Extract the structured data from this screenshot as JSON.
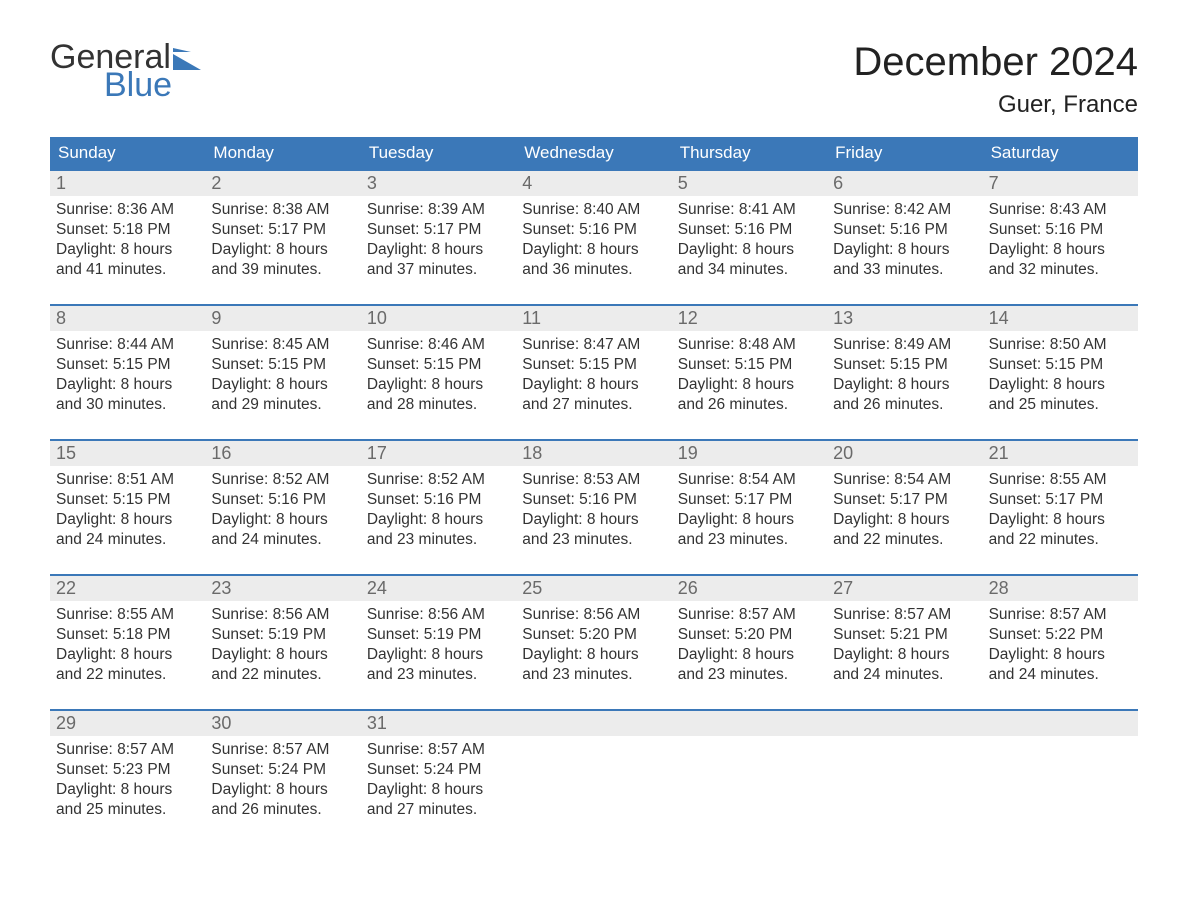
{
  "logo": {
    "part1": "General",
    "part2": "Blue",
    "flag_color": "#3b78b8",
    "text_color": "#333333"
  },
  "title": "December 2024",
  "location": "Guer, France",
  "colors": {
    "header_bg": "#3b78b8",
    "header_text": "#ffffff",
    "daynum_bg": "#ececec",
    "daynum_text": "#6a6a6a",
    "body_text": "#333333",
    "week_border": "#3b78b8",
    "background": "#ffffff"
  },
  "typography": {
    "title_fontsize": 40,
    "location_fontsize": 24,
    "weekday_fontsize": 17,
    "daynum_fontsize": 18,
    "content_fontsize": 15.5,
    "font_family": "Arial"
  },
  "weekdays": [
    "Sunday",
    "Monday",
    "Tuesday",
    "Wednesday",
    "Thursday",
    "Friday",
    "Saturday"
  ],
  "weeks": [
    [
      {
        "day": "1",
        "sunrise": "8:36 AM",
        "sunset": "5:18 PM",
        "daylight": "8 hours and 41 minutes."
      },
      {
        "day": "2",
        "sunrise": "8:38 AM",
        "sunset": "5:17 PM",
        "daylight": "8 hours and 39 minutes."
      },
      {
        "day": "3",
        "sunrise": "8:39 AM",
        "sunset": "5:17 PM",
        "daylight": "8 hours and 37 minutes."
      },
      {
        "day": "4",
        "sunrise": "8:40 AM",
        "sunset": "5:16 PM",
        "daylight": "8 hours and 36 minutes."
      },
      {
        "day": "5",
        "sunrise": "8:41 AM",
        "sunset": "5:16 PM",
        "daylight": "8 hours and 34 minutes."
      },
      {
        "day": "6",
        "sunrise": "8:42 AM",
        "sunset": "5:16 PM",
        "daylight": "8 hours and 33 minutes."
      },
      {
        "day": "7",
        "sunrise": "8:43 AM",
        "sunset": "5:16 PM",
        "daylight": "8 hours and 32 minutes."
      }
    ],
    [
      {
        "day": "8",
        "sunrise": "8:44 AM",
        "sunset": "5:15 PM",
        "daylight": "8 hours and 30 minutes."
      },
      {
        "day": "9",
        "sunrise": "8:45 AM",
        "sunset": "5:15 PM",
        "daylight": "8 hours and 29 minutes."
      },
      {
        "day": "10",
        "sunrise": "8:46 AM",
        "sunset": "5:15 PM",
        "daylight": "8 hours and 28 minutes."
      },
      {
        "day": "11",
        "sunrise": "8:47 AM",
        "sunset": "5:15 PM",
        "daylight": "8 hours and 27 minutes."
      },
      {
        "day": "12",
        "sunrise": "8:48 AM",
        "sunset": "5:15 PM",
        "daylight": "8 hours and 26 minutes."
      },
      {
        "day": "13",
        "sunrise": "8:49 AM",
        "sunset": "5:15 PM",
        "daylight": "8 hours and 26 minutes."
      },
      {
        "day": "14",
        "sunrise": "8:50 AM",
        "sunset": "5:15 PM",
        "daylight": "8 hours and 25 minutes."
      }
    ],
    [
      {
        "day": "15",
        "sunrise": "8:51 AM",
        "sunset": "5:15 PM",
        "daylight": "8 hours and 24 minutes."
      },
      {
        "day": "16",
        "sunrise": "8:52 AM",
        "sunset": "5:16 PM",
        "daylight": "8 hours and 24 minutes."
      },
      {
        "day": "17",
        "sunrise": "8:52 AM",
        "sunset": "5:16 PM",
        "daylight": "8 hours and 23 minutes."
      },
      {
        "day": "18",
        "sunrise": "8:53 AM",
        "sunset": "5:16 PM",
        "daylight": "8 hours and 23 minutes."
      },
      {
        "day": "19",
        "sunrise": "8:54 AM",
        "sunset": "5:17 PM",
        "daylight": "8 hours and 23 minutes."
      },
      {
        "day": "20",
        "sunrise": "8:54 AM",
        "sunset": "5:17 PM",
        "daylight": "8 hours and 22 minutes."
      },
      {
        "day": "21",
        "sunrise": "8:55 AM",
        "sunset": "5:17 PM",
        "daylight": "8 hours and 22 minutes."
      }
    ],
    [
      {
        "day": "22",
        "sunrise": "8:55 AM",
        "sunset": "5:18 PM",
        "daylight": "8 hours and 22 minutes."
      },
      {
        "day": "23",
        "sunrise": "8:56 AM",
        "sunset": "5:19 PM",
        "daylight": "8 hours and 22 minutes."
      },
      {
        "day": "24",
        "sunrise": "8:56 AM",
        "sunset": "5:19 PM",
        "daylight": "8 hours and 23 minutes."
      },
      {
        "day": "25",
        "sunrise": "8:56 AM",
        "sunset": "5:20 PM",
        "daylight": "8 hours and 23 minutes."
      },
      {
        "day": "26",
        "sunrise": "8:57 AM",
        "sunset": "5:20 PM",
        "daylight": "8 hours and 23 minutes."
      },
      {
        "day": "27",
        "sunrise": "8:57 AM",
        "sunset": "5:21 PM",
        "daylight": "8 hours and 24 minutes."
      },
      {
        "day": "28",
        "sunrise": "8:57 AM",
        "sunset": "5:22 PM",
        "daylight": "8 hours and 24 minutes."
      }
    ],
    [
      {
        "day": "29",
        "sunrise": "8:57 AM",
        "sunset": "5:23 PM",
        "daylight": "8 hours and 25 minutes."
      },
      {
        "day": "30",
        "sunrise": "8:57 AM",
        "sunset": "5:24 PM",
        "daylight": "8 hours and 26 minutes."
      },
      {
        "day": "31",
        "sunrise": "8:57 AM",
        "sunset": "5:24 PM",
        "daylight": "8 hours and 27 minutes."
      },
      {
        "day": "",
        "sunrise": "",
        "sunset": "",
        "daylight": ""
      },
      {
        "day": "",
        "sunrise": "",
        "sunset": "",
        "daylight": ""
      },
      {
        "day": "",
        "sunrise": "",
        "sunset": "",
        "daylight": ""
      },
      {
        "day": "",
        "sunrise": "",
        "sunset": "",
        "daylight": ""
      }
    ]
  ],
  "labels": {
    "sunrise": "Sunrise: ",
    "sunset": "Sunset: ",
    "daylight": "Daylight: "
  }
}
